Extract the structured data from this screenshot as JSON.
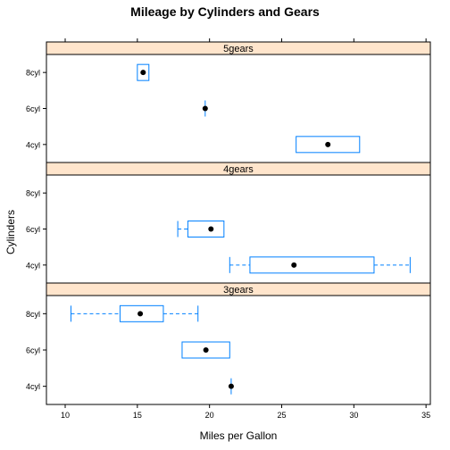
{
  "chart_data": {
    "type": "boxplot",
    "title": "Mileage by Cylinders and Gears",
    "xlabel": "Miles per Gallon",
    "ylabel": "Cylinders",
    "xlim": [
      8.7,
      35.3
    ],
    "x_ticks": [
      10,
      15,
      20,
      25,
      30,
      35
    ],
    "categories": [
      "4cyl",
      "6cyl",
      "8cyl"
    ],
    "grid": false,
    "colors": {
      "box": "#0080ff",
      "strip_bg": "#ffe5cc",
      "median": "#000000",
      "frame": "#000000"
    },
    "panels": [
      {
        "strip": "5gears",
        "boxes": [
          {
            "category": "4cyl",
            "min": 26.0,
            "q1": 26.0,
            "median": 28.2,
            "q3": 30.4,
            "max": 30.4
          },
          {
            "category": "6cyl",
            "min": 19.7,
            "q1": 19.7,
            "median": 19.7,
            "q3": 19.7,
            "max": 19.7
          },
          {
            "category": "8cyl",
            "min": 15.0,
            "q1": 15.0,
            "median": 15.4,
            "q3": 15.8,
            "max": 15.8
          }
        ]
      },
      {
        "strip": "4gears",
        "boxes": [
          {
            "category": "4cyl",
            "min": 21.4,
            "q1": 22.8,
            "median": 25.85,
            "q3": 31.4,
            "max": 33.9
          },
          {
            "category": "6cyl",
            "min": 17.8,
            "q1": 18.5,
            "median": 20.1,
            "q3": 21.0,
            "max": 21.0
          },
          {
            "category": "8cyl",
            "min": null,
            "q1": null,
            "median": null,
            "q3": null,
            "max": null
          }
        ]
      },
      {
        "strip": "3gears",
        "boxes": [
          {
            "category": "4cyl",
            "min": 21.5,
            "q1": 21.5,
            "median": 21.5,
            "q3": 21.5,
            "max": 21.5
          },
          {
            "category": "6cyl",
            "min": 18.1,
            "q1": 18.1,
            "median": 19.75,
            "q3": 21.4,
            "max": 21.4
          },
          {
            "category": "8cyl",
            "min": 10.4,
            "q1": 13.8,
            "median": 15.2,
            "q3": 16.8,
            "max": 19.2
          }
        ]
      }
    ]
  }
}
